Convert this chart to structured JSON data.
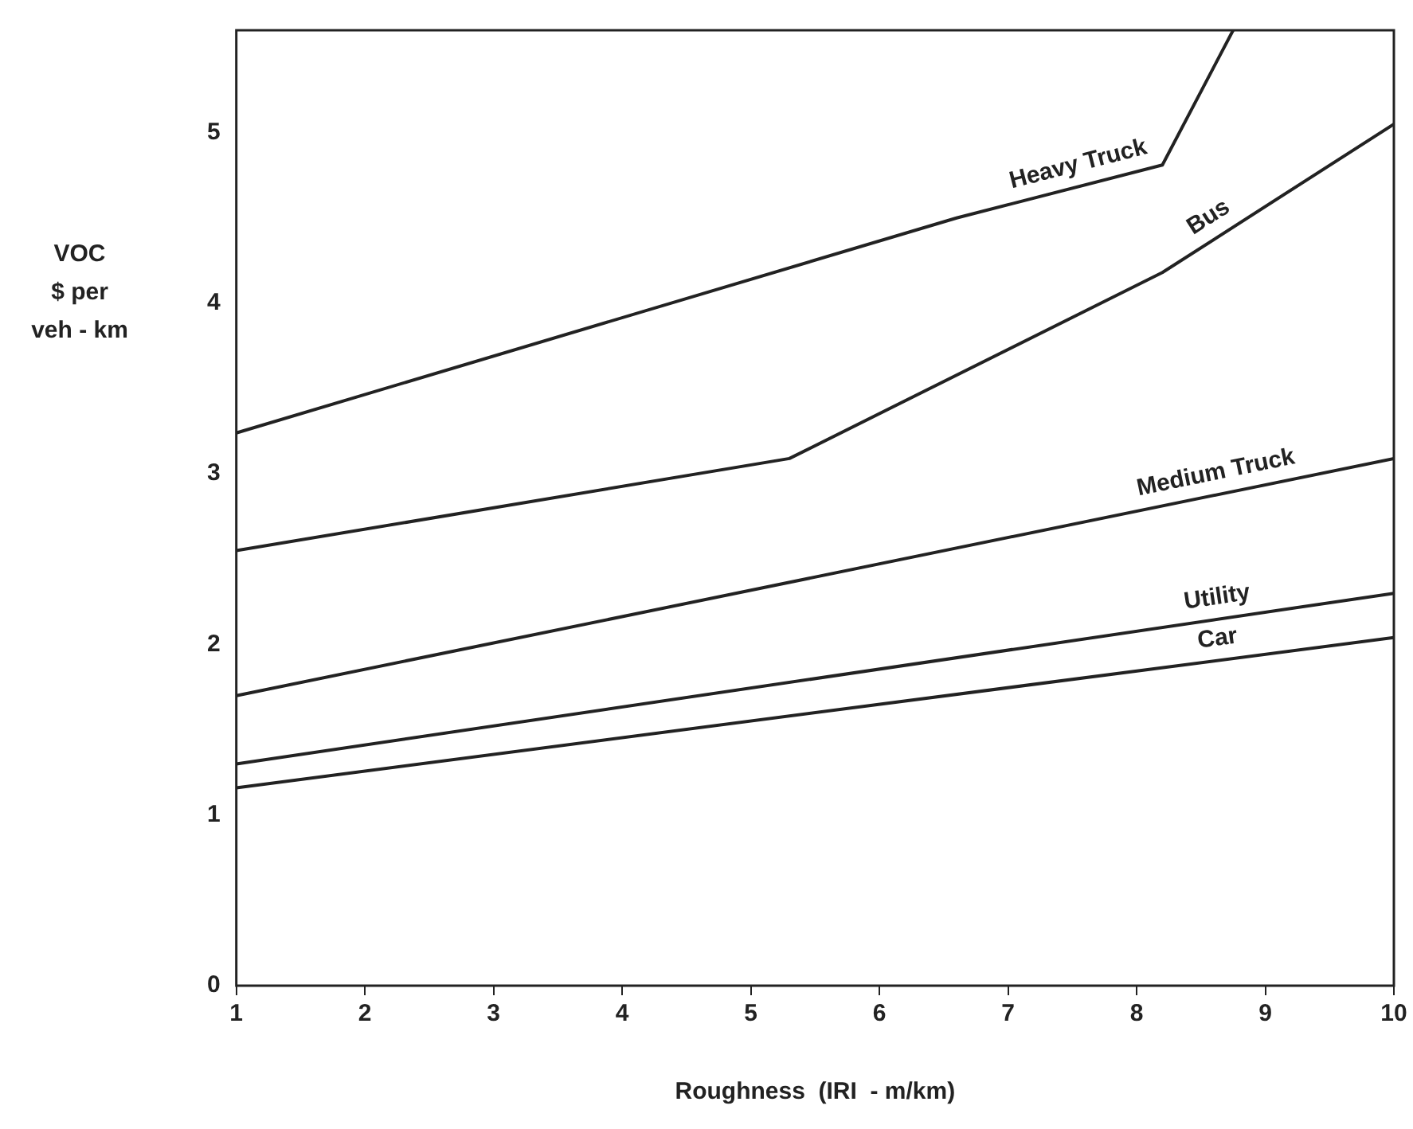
{
  "chart_data": {
    "type": "line",
    "xlabel": "Roughness  (IRI  - m/km)",
    "ylabel": "VOC\n$ per\nveh - km",
    "xlim": [
      1,
      10
    ],
    "xticks": [
      1,
      2,
      3,
      4,
      5,
      6,
      7,
      8,
      9,
      10
    ],
    "ylim": [
      0,
      5.6
    ],
    "yticks": [
      0,
      1,
      2,
      3,
      4,
      5
    ],
    "grid": false,
    "legend": false,
    "marker": "none",
    "line_style": "solid",
    "series": [
      {
        "name": "Heavy Truck",
        "color": "#222222",
        "x": [
          1,
          6.6,
          8.2,
          8.75
        ],
        "values": [
          3.24,
          4.5,
          4.81,
          5.6
        ]
      },
      {
        "name": "Bus",
        "color": "#222222",
        "x": [
          1,
          5.3,
          8.2,
          10
        ],
        "values": [
          2.55,
          3.09,
          4.18,
          5.05
        ]
      },
      {
        "name": "Medium Truck",
        "color": "#222222",
        "x": [
          1,
          10
        ],
        "values": [
          1.7,
          3.09
        ]
      },
      {
        "name": "Utility",
        "color": "#222222",
        "x": [
          1,
          10
        ],
        "values": [
          1.3,
          2.3
        ]
      },
      {
        "name": "Car",
        "color": "#222222",
        "x": [
          1,
          10
        ],
        "values": [
          1.16,
          2.04
        ]
      }
    ]
  }
}
